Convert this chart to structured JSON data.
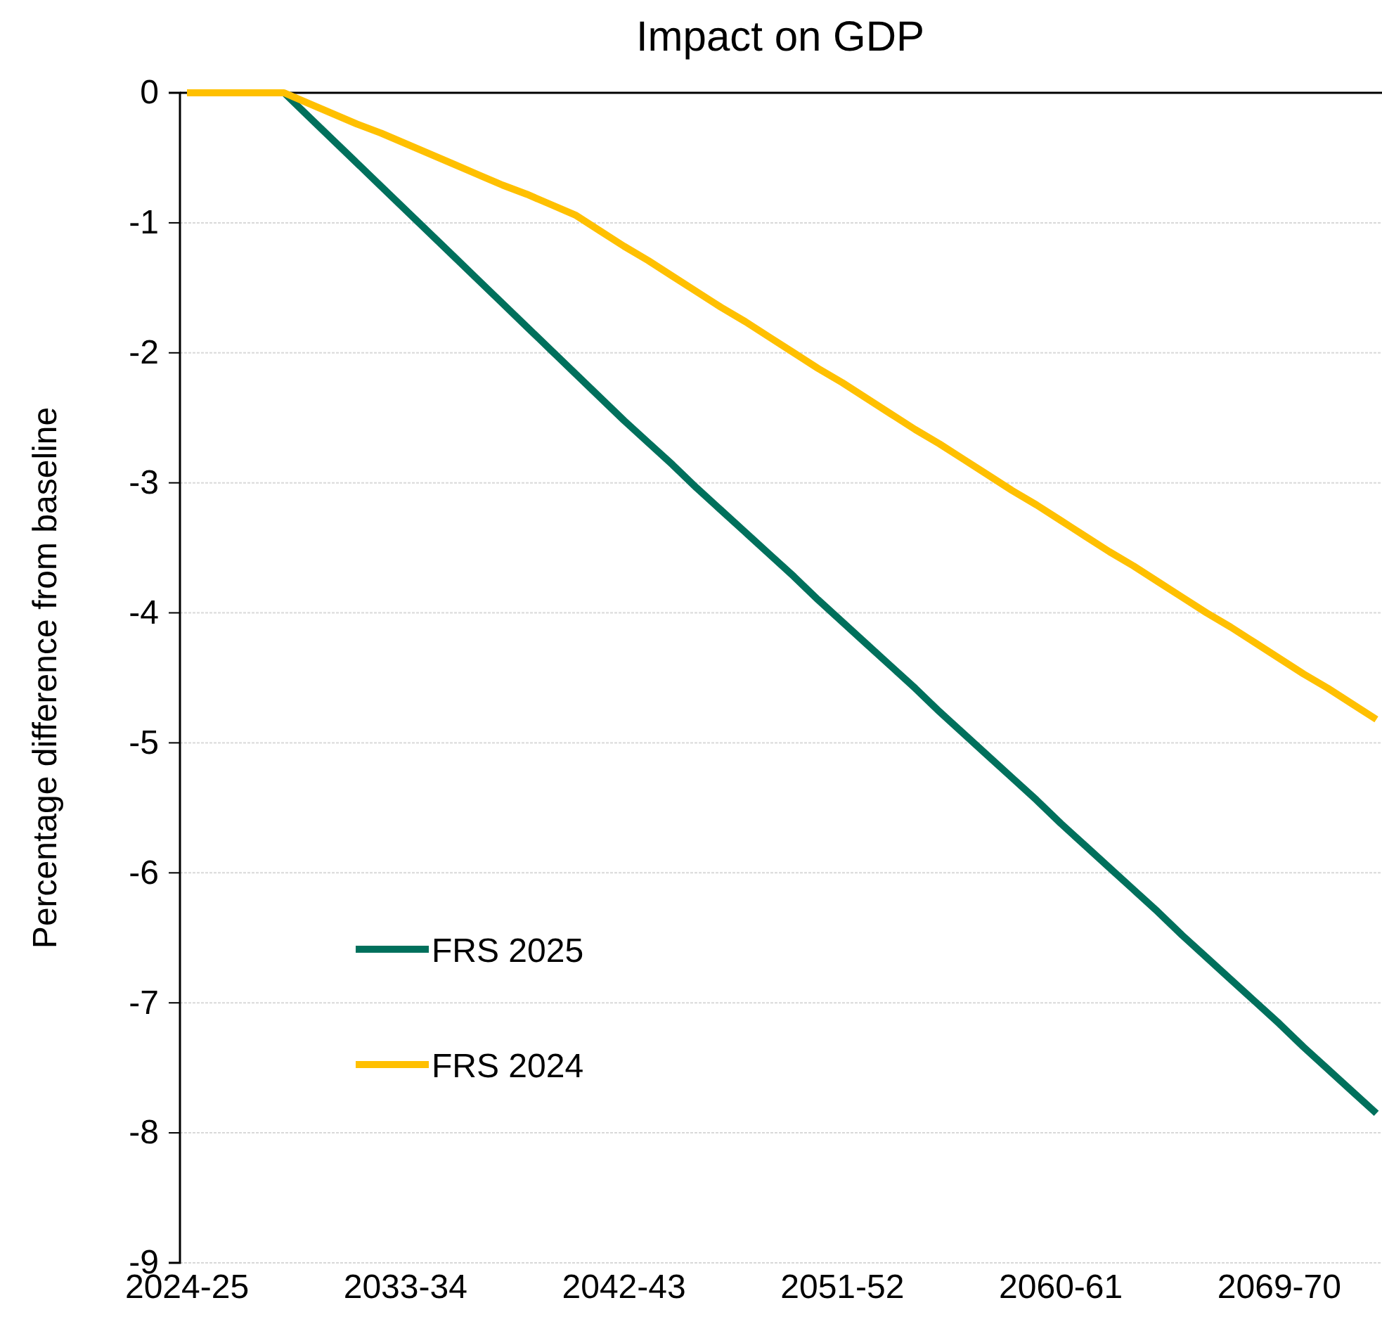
{
  "chart_data": {
    "type": "line",
    "title": "Impact on GDP",
    "ylabel": "Percentage difference from baseline",
    "categories": [
      "2024-25",
      null,
      null,
      null,
      null,
      null,
      null,
      null,
      null,
      "2033-34",
      null,
      null,
      null,
      null,
      null,
      null,
      null,
      null,
      "2042-43",
      null,
      null,
      null,
      null,
      null,
      null,
      null,
      null,
      "2051-52",
      null,
      null,
      null,
      null,
      null,
      null,
      null,
      null,
      "2060-61",
      null,
      null,
      null,
      null,
      null,
      null,
      null,
      null,
      "2069-70",
      null,
      null,
      null,
      null
    ],
    "series": [
      {
        "name": "FRS 2025",
        "color": "#00705c",
        "values": [
          null,
          null,
          null,
          null,
          0,
          -0.18,
          -0.36,
          -0.54,
          -0.72,
          -0.9,
          -1.08,
          -1.26,
          -1.44,
          -1.62,
          -1.8,
          -1.98,
          -2.16,
          -2.34,
          -2.52,
          -2.69,
          -2.86,
          -3.04,
          -3.21,
          -3.38,
          -3.55,
          -3.72,
          -3.9,
          -4.07,
          -4.24,
          -4.41,
          -4.58,
          -4.76,
          -4.93,
          -5.1,
          -5.27,
          -5.44,
          -5.62,
          -5.79,
          -5.96,
          -6.13,
          -6.3,
          -6.48,
          -6.65,
          -6.82,
          -6.99,
          -7.16,
          -7.34,
          -7.51,
          -7.68,
          -7.85
        ]
      },
      {
        "name": "FRS 2024",
        "color": "#ffc000",
        "values": [
          0,
          0,
          0,
          0,
          0,
          -0.08,
          -0.16,
          -0.24,
          -0.31,
          -0.39,
          -0.47,
          -0.55,
          -0.63,
          -0.71,
          -0.78,
          -0.86,
          -0.94,
          -1.06,
          -1.18,
          -1.29,
          -1.41,
          -1.53,
          -1.65,
          -1.76,
          -1.88,
          -2.0,
          -2.12,
          -2.23,
          -2.35,
          -2.47,
          -2.59,
          -2.7,
          -2.82,
          -2.94,
          -3.06,
          -3.17,
          -3.29,
          -3.41,
          -3.53,
          -3.64,
          -3.76,
          -3.88,
          -4.0,
          -4.11,
          -4.23,
          -4.35,
          -4.47,
          -4.58,
          -4.7,
          -4.82
        ]
      }
    ],
    "ylim": [
      -9,
      0
    ],
    "yticks": [
      0,
      -1,
      -2,
      -3,
      -4,
      -5,
      -6,
      -7,
      -8,
      -9
    ],
    "grid": "y",
    "legend": "left",
    "marker": "none",
    "line_style": "solid"
  }
}
